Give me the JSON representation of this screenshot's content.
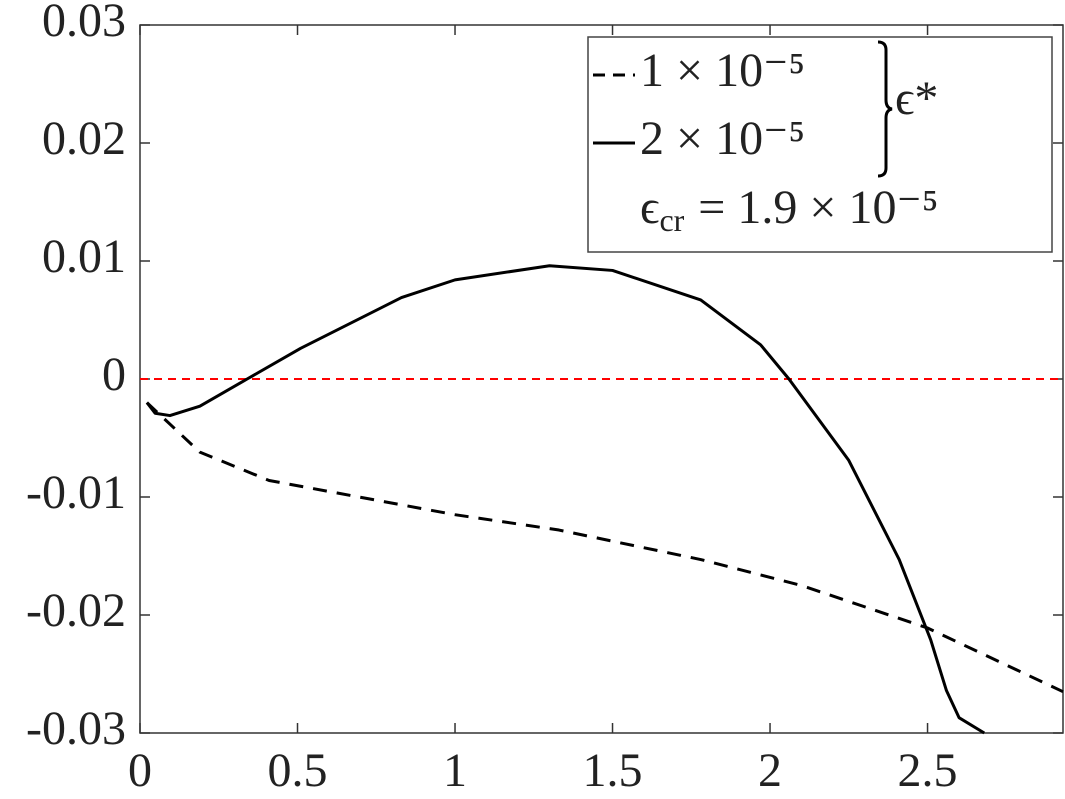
{
  "chart_data": {
    "type": "line",
    "series": [
      {
        "name": "1 × 10⁻⁵",
        "color": "#000000",
        "dash": true,
        "x": [
          0.022,
          0.19,
          0.41,
          1.0,
          1.33,
          1.78,
          2.1,
          2.5,
          2.93
        ],
        "values": [
          -0.002,
          -0.0062,
          -0.0086,
          -0.0115,
          -0.0128,
          -0.0153,
          -0.0175,
          -0.0211,
          -0.0265
        ]
      },
      {
        "name": "2 × 10⁻⁵",
        "color": "#000000",
        "dash": false,
        "x": [
          0.022,
          0.048,
          0.095,
          0.19,
          0.34,
          0.51,
          0.83,
          1.0,
          1.3,
          1.5,
          1.78,
          1.97,
          2.06,
          2.25,
          2.41,
          2.51,
          2.56,
          2.6,
          2.68
        ],
        "values": [
          -0.002,
          -0.0029,
          -0.0031,
          -0.0023,
          0,
          0.0026,
          0.0069,
          0.0084,
          0.0096,
          0.0092,
          0.0067,
          0.0029,
          0,
          -0.0069,
          -0.0153,
          -0.0221,
          -0.0264,
          -0.0287,
          -0.03
        ]
      }
    ],
    "legend_group_label": "ϵ*",
    "annotation": {
      "symbol": "ϵ",
      "subscript": "cr",
      "rest": "= 1.9 × 10⁻⁵"
    },
    "reference_line": {
      "y": 0,
      "color": "#ff0000"
    },
    "xlim": [
      0,
      2.93
    ],
    "xticks": [
      0,
      0.5,
      1,
      1.5,
      2,
      2.5
    ],
    "ylim": [
      -0.03,
      0.03
    ],
    "yticks": [
      -0.03,
      -0.02,
      -0.01,
      0,
      0.01,
      0.02,
      0.03
    ],
    "legend": "upper right"
  }
}
